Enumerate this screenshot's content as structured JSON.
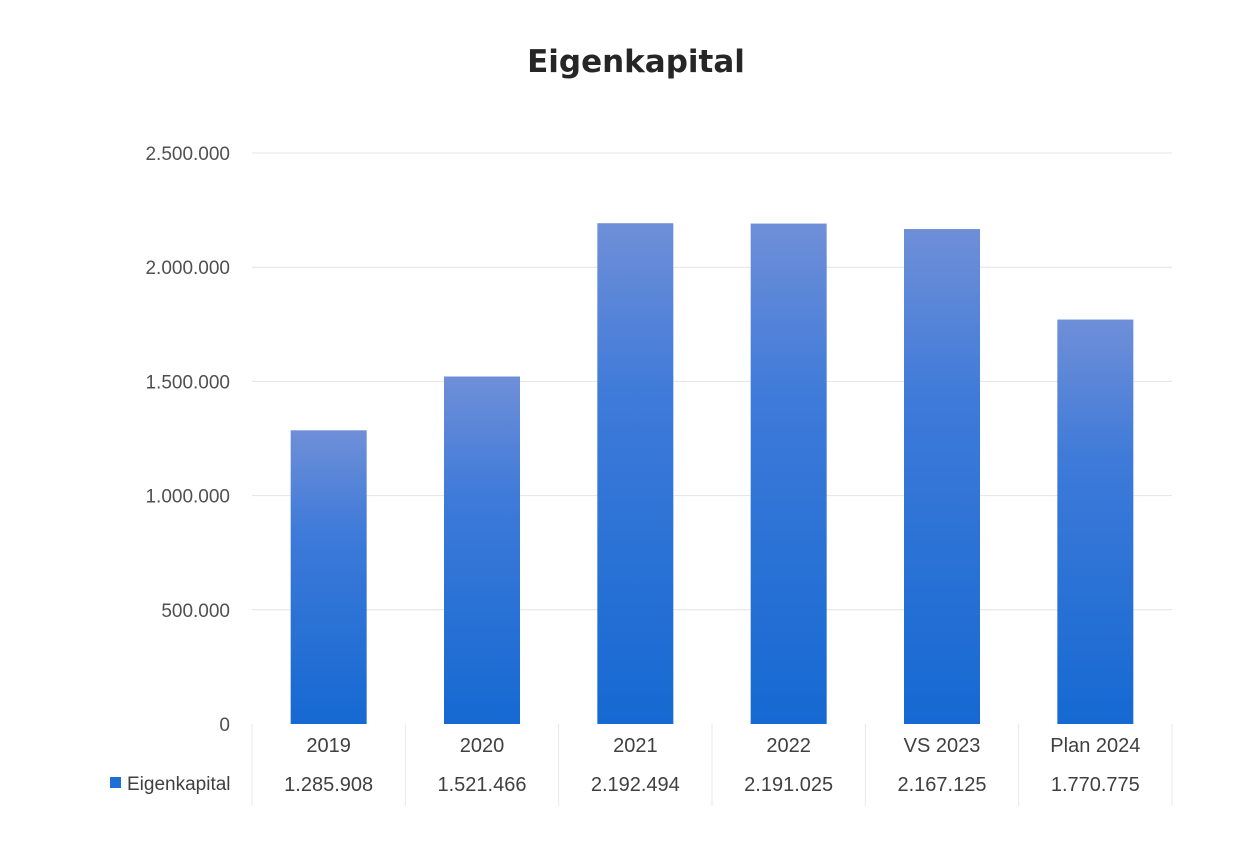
{
  "chart_data": {
    "type": "bar",
    "title": "Eigenkapital",
    "categories": [
      "2019",
      "2020",
      "2021",
      "2022",
      "VS 2023",
      "Plan 2024"
    ],
    "series": [
      {
        "name": "Eigenkapital",
        "values": [
          1285908,
          1521466,
          2192494,
          2191025,
          2167125,
          1770775
        ],
        "value_labels": [
          "1.285.908",
          "1.521.466",
          "2.192.494",
          "2.191.025",
          "2.167.125",
          "1.770.775"
        ],
        "color": "#1f6fd6"
      }
    ],
    "ylim": [
      0,
      2500000
    ],
    "yticks": [
      0,
      500000,
      1000000,
      1500000,
      2000000,
      2500000
    ],
    "ytick_labels": [
      "0",
      "500.000",
      "1.000.000",
      "1.500.000",
      "2.000.000",
      "2.500.000"
    ],
    "xlabel": "",
    "ylabel": "",
    "grid": true,
    "legend": "bottom-left data table",
    "data_table": true
  }
}
